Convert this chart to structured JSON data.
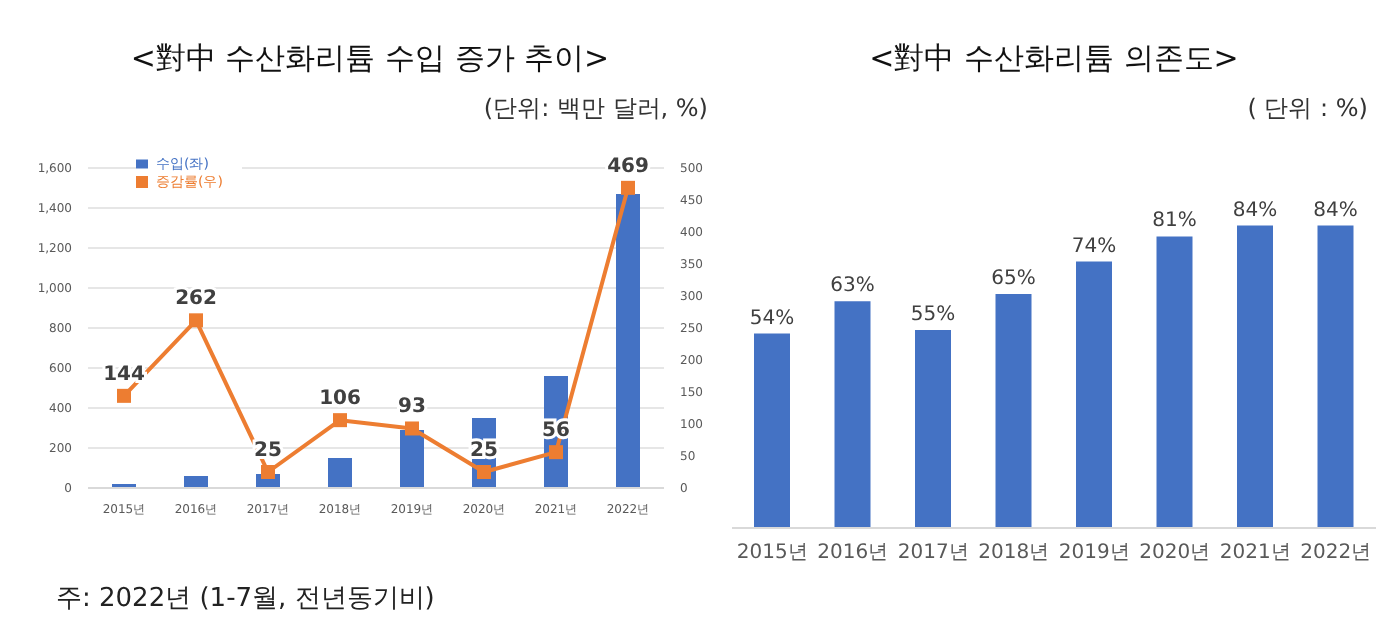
{
  "chart_data": [
    {
      "type": "bar",
      "title": "<對中 수산화리튬 수입 증가 추이>",
      "subtitle": "(단위: 백만 달러, %)",
      "categories": [
        "2015년",
        "2016년",
        "2017년",
        "2018년",
        "2019년",
        "2020년",
        "2021년",
        "2022년"
      ],
      "series": [
        {
          "name": "수입(좌)",
          "color": "#4472c4",
          "values": [
            20,
            60,
            70,
            150,
            290,
            350,
            560,
            1470
          ]
        },
        {
          "name": "증감률(우)",
          "type": "line",
          "axis": "y2",
          "color": "#ed7d31",
          "values": [
            144,
            262,
            25,
            106,
            93,
            25,
            56,
            469
          ],
          "value_labels": [
            "144",
            "262",
            "25",
            "106",
            "93",
            "25",
            "56",
            "469"
          ]
        }
      ],
      "ylim": [
        0,
        1600
      ],
      "yticks": [
        0,
        {
          "value": 200,
          "label": "200"
        },
        400,
        600,
        800,
        {
          "value": 1000,
          "label": "1,000"
        },
        {
          "value": 1200,
          "label": "1,200"
        },
        {
          "value": 1400,
          "label": "1,400"
        },
        {
          "value": 1600,
          "label": "1,600"
        }
      ],
      "y2lim": [
        0,
        500
      ],
      "y2ticks": [
        0,
        50,
        100,
        150,
        200,
        250,
        300,
        350,
        400,
        450,
        500
      ],
      "grid": "y",
      "legend": "top left",
      "marker": "square",
      "annotations": [
        "주: 2022년 (1-7월, 전년동기비)"
      ]
    },
    {
      "type": "bar",
      "title": "<對中 수산화리튬 의존도>",
      "subtitle": "( 단위 : %)",
      "categories": [
        "2015년",
        "2016년",
        "2017년",
        "2018년",
        "2019년",
        "2020년",
        "2021년",
        "2022년"
      ],
      "values": [
        54,
        63,
        55,
        65,
        74,
        81,
        84,
        84
      ],
      "value_labels": [
        "54%",
        "63%",
        "55%",
        "65%",
        "74%",
        "81%",
        "84%",
        "84%"
      ],
      "color": "#4472c4"
    }
  ]
}
